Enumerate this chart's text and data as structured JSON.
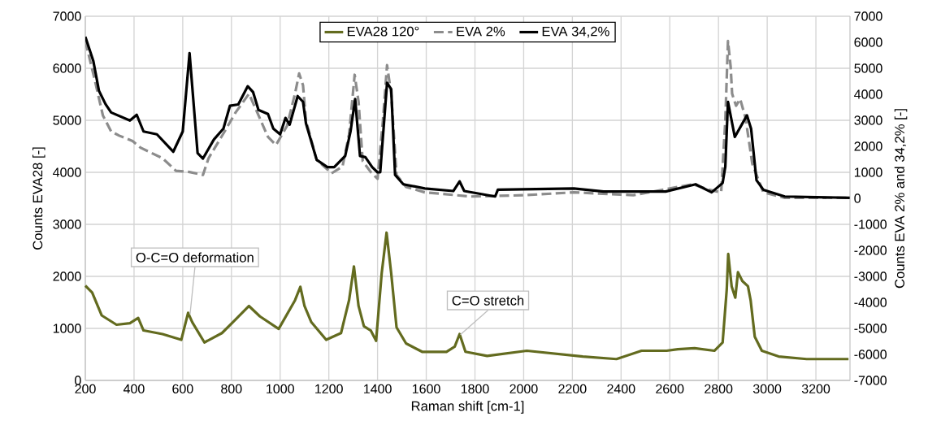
{
  "chart_data": {
    "type": "line",
    "xlabel": "Raman shift [cm-1]",
    "ylabel": "Counts EVA28 [-]",
    "y2label": "Counts EVA 2% and 34,2% [-]",
    "xlim": [
      200,
      3340
    ],
    "xticks": [
      200,
      400,
      600,
      800,
      1000,
      1200,
      1400,
      1600,
      1800,
      2000,
      2200,
      2400,
      2600,
      2800,
      3000,
      3200
    ],
    "ylim": [
      0,
      7000
    ],
    "yticks": [
      0,
      1000,
      2000,
      3000,
      4000,
      5000,
      6000,
      7000
    ],
    "y2lim": [
      -7000,
      7000
    ],
    "y2ticks": [
      -7000,
      -6000,
      -5000,
      -4000,
      -3000,
      -2000,
      -1000,
      0,
      1000,
      2000,
      3000,
      4000,
      5000,
      6000,
      7000
    ],
    "grid": true,
    "legend": "top",
    "annotations": [
      {
        "text": "O-C=O deformation",
        "x": 630,
        "y": 1270
      },
      {
        "text": "C=O stretch",
        "x": 1740,
        "y": 880
      }
    ],
    "series": [
      {
        "name": "EVA28 120°",
        "color": "#636b1f",
        "line_style": "solid",
        "x": [
          200,
          228,
          267,
          328,
          383,
          417,
          439,
          517,
          594,
          622,
          639,
          689,
          761,
          806,
          872,
          917,
          994,
          1061,
          1083,
          1100,
          1128,
          1189,
          1250,
          1283,
          1303,
          1322,
          1344,
          1372,
          1394,
          1417,
          1437,
          1456,
          1478,
          1517,
          1583,
          1683,
          1717,
          1737,
          1761,
          1850,
          2013,
          2243,
          2381,
          2484,
          2587,
          2633,
          2702,
          2783,
          2817,
          2834,
          2840,
          2854,
          2869,
          2880,
          2898,
          2921,
          2932,
          2949,
          2978,
          3047,
          3162,
          3334
        ],
        "values": [
          1820,
          1690,
          1250,
          1070,
          1100,
          1200,
          960,
          890,
          780,
          1300,
          1120,
          730,
          910,
          1120,
          1430,
          1230,
          990,
          1540,
          1800,
          1430,
          1120,
          780,
          910,
          1540,
          2190,
          1430,
          1040,
          960,
          760,
          2060,
          2840,
          2060,
          1020,
          710,
          550,
          550,
          650,
          890,
          550,
          470,
          570,
          460,
          410,
          570,
          570,
          600,
          620,
          570,
          730,
          1750,
          2430,
          1810,
          1590,
          2080,
          1910,
          1810,
          1540,
          840,
          570,
          460,
          410,
          410
        ]
      },
      {
        "name": "EVA 2%",
        "color": "#8c8c8c",
        "line_style": "dashed",
        "axis": "y2",
        "x": [
          200,
          239,
          272,
          306,
          339,
          394,
          428,
          517,
          572,
          628,
          683,
          706,
          772,
          817,
          872,
          906,
          950,
          983,
          1028,
          1061,
          1078,
          1094,
          1106,
          1150,
          1211,
          1256,
          1283,
          1306,
          1322,
          1339,
          1372,
          1400,
          1422,
          1439,
          1456,
          1478,
          1517,
          1594,
          1783,
          2006,
          2206,
          2450,
          2694,
          2761,
          2811,
          2828,
          2839,
          2850,
          2856,
          2872,
          2889,
          2911,
          2939,
          2984,
          3072,
          3339
        ],
        "values": [
          6050,
          4540,
          3190,
          2570,
          2410,
          2200,
          1940,
          1540,
          1060,
          1010,
          900,
          1540,
          2570,
          3300,
          4020,
          3300,
          2360,
          2050,
          2780,
          4020,
          4800,
          4340,
          2990,
          1480,
          960,
          1220,
          2460,
          4750,
          3710,
          1430,
          1010,
          750,
          2990,
          5120,
          4020,
          900,
          440,
          230,
          70,
          120,
          230,
          120,
          540,
          330,
          230,
          2980,
          6050,
          5060,
          4020,
          3560,
          3820,
          3090,
          1320,
          230,
          20,
          20
        ]
      },
      {
        "name": "EVA 34,2%",
        "color": "#000000",
        "line_style": "solid",
        "axis": "y2",
        "x": [
          200,
          233,
          256,
          283,
          306,
          383,
          411,
          439,
          494,
          561,
          600,
          628,
          661,
          683,
          728,
          767,
          794,
          828,
          867,
          889,
          911,
          950,
          972,
          1000,
          1022,
          1039,
          1072,
          1094,
          1106,
          1150,
          1194,
          1222,
          1267,
          1289,
          1308,
          1328,
          1350,
          1378,
          1400,
          1411,
          1439,
          1456,
          1472,
          1506,
          1594,
          1711,
          1737,
          1756,
          1883,
          1894,
          2206,
          2328,
          2583,
          2706,
          2772,
          2817,
          2828,
          2839,
          2867,
          2917,
          2934,
          2956,
          2984,
          3072,
          3339
        ],
        "values": [
          6210,
          5270,
          4130,
          3620,
          3300,
          2990,
          3210,
          2570,
          2460,
          1790,
          2570,
          5580,
          1740,
          1530,
          2260,
          2680,
          3560,
          3610,
          4310,
          4080,
          3400,
          3240,
          2680,
          2460,
          3090,
          2830,
          3930,
          3710,
          2880,
          1480,
          1200,
          1200,
          1630,
          2570,
          3820,
          1630,
          1580,
          1200,
          1000,
          1000,
          4440,
          4200,
          900,
          540,
          380,
          280,
          650,
          280,
          70,
          330,
          380,
          260,
          260,
          540,
          230,
          590,
          1220,
          3710,
          2360,
          3190,
          2670,
          700,
          330,
          70,
          20
        ]
      }
    ]
  }
}
